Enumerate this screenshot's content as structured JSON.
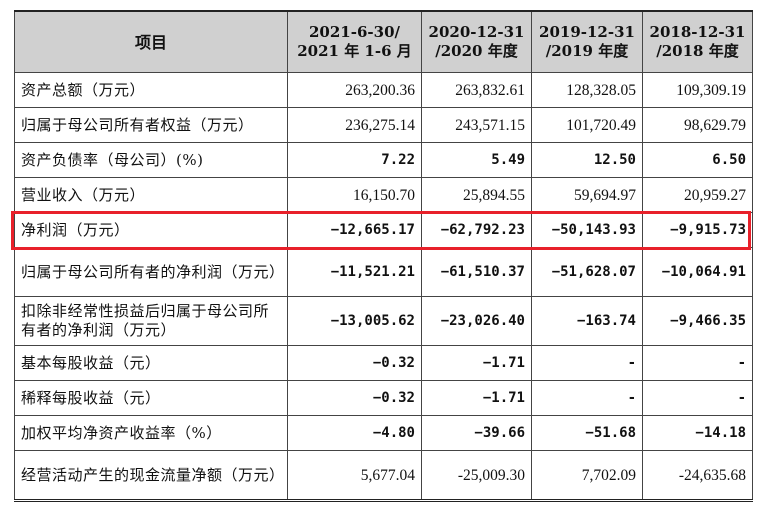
{
  "table": {
    "headers": [
      {
        "line1": "项目",
        "line2": ""
      },
      {
        "line1": "2021-6-30/",
        "line2": "2021 年 1-6 月"
      },
      {
        "line1": "2020-12-31",
        "line2": "/2020 年度"
      },
      {
        "line1": "2019-12-31",
        "line2": "/2019 年度"
      },
      {
        "line1": "2018-12-31",
        "line2": "/2018 年度"
      }
    ],
    "rows": [
      {
        "label": "资产总额（万元）",
        "values": [
          "263,200.36",
          "263,832.61",
          "128,328.05",
          "109,309.19"
        ]
      },
      {
        "label": "归属于母公司所有者权益（万元）",
        "values": [
          "236,275.14",
          "243,571.15",
          "101,720.49",
          "98,629.79"
        ]
      },
      {
        "label": "资产负债率（母公司）(%)",
        "values": [
          "7.22",
          "5.49",
          "12.50",
          "6.50"
        ]
      },
      {
        "label": "营业收入（万元）",
        "values": [
          "16,150.70",
          "25,894.55",
          "59,694.97",
          "20,959.27"
        ]
      },
      {
        "label": "净利润（万元）",
        "values": [
          "−12,665.17",
          "−62,792.23",
          "−50,143.93",
          "−9,915.73"
        ]
      },
      {
        "label": "归属于母公司所有者的净利润（万元）",
        "values": [
          "−11,521.21",
          "−61,510.37",
          "−51,628.07",
          "−10,064.91"
        ]
      },
      {
        "label": "扣除非经常性损益后归属于母公司所有者的净利润（万元）",
        "values": [
          "−13,005.62",
          "−23,026.40",
          "−163.74",
          "−9,466.35"
        ]
      },
      {
        "label": "基本每股收益（元）",
        "values": [
          "−0.32",
          "−1.71",
          "-",
          "-"
        ]
      },
      {
        "label": "稀释每股收益（元）",
        "values": [
          "−0.32",
          "−1.71",
          "-",
          "-"
        ]
      },
      {
        "label": "加权平均净资产收益率（%）",
        "values": [
          "−4.80",
          "−39.66",
          "−51.68",
          "−14.18"
        ]
      },
      {
        "label": "经营活动产生的现金流量净额（万元）",
        "values": [
          "5,677.04",
          "-25,009.30",
          "7,702.09",
          "-24,635.68"
        ]
      }
    ]
  },
  "highlight": {
    "row_index": 4,
    "color": "#e8202a"
  }
}
